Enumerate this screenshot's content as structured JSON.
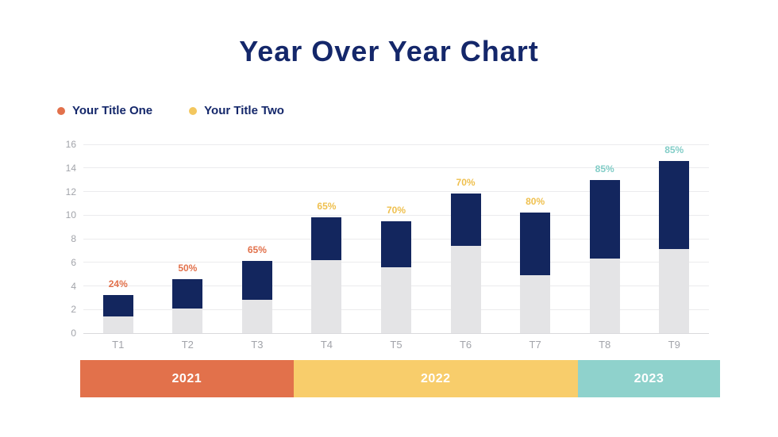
{
  "title": "Year Over Year Chart",
  "legend": {
    "items": [
      {
        "label": "Your Title One",
        "color": "#E2714B"
      },
      {
        "label": "Your Title Two",
        "color": "#F3C75F"
      }
    ]
  },
  "chart_data": {
    "type": "bar",
    "stacked": true,
    "title": "Year Over Year Chart",
    "categories": [
      "T1",
      "T2",
      "T3",
      "T4",
      "T5",
      "T6",
      "T7",
      "T8",
      "T9"
    ],
    "series": [
      {
        "name": "bottom-segment",
        "color": "#E4E4E6",
        "values": [
          1.4,
          2.1,
          2.8,
          6.2,
          5.6,
          7.4,
          4.9,
          6.3,
          7.1
        ]
      },
      {
        "name": "top-segment",
        "color": "#13265E",
        "values": [
          1.8,
          2.5,
          3.3,
          3.6,
          3.9,
          4.4,
          5.3,
          6.7,
          7.5
        ]
      }
    ],
    "stack_totals": [
      3.2,
      4.6,
      6.1,
      9.8,
      9.5,
      11.8,
      10.2,
      13.0,
      14.6
    ],
    "bar_labels": [
      {
        "text": "24%",
        "color": "#E2714B"
      },
      {
        "text": "50%",
        "color": "#E2714B"
      },
      {
        "text": "65%",
        "color": "#E2714B"
      },
      {
        "text": "65%",
        "color": "#EFC04F"
      },
      {
        "text": "70%",
        "color": "#EFC04F"
      },
      {
        "text": "70%",
        "color": "#EFC04F"
      },
      {
        "text": "80%",
        "color": "#EFC04F"
      },
      {
        "text": "85%",
        "color": "#82CDC7"
      },
      {
        "text": "85%",
        "color": "#82CDC7"
      }
    ],
    "ylim": [
      0,
      16
    ],
    "yticks": [
      0,
      2,
      4,
      6,
      8,
      10,
      12,
      14,
      16
    ],
    "grid": true,
    "legend_position": "top-left"
  },
  "year_bands": [
    {
      "label": "2021",
      "color": "#E2714B",
      "span": 3
    },
    {
      "label": "2022",
      "color": "#F8CD6B",
      "span": 4
    },
    {
      "label": "2023",
      "color": "#8FD2CC",
      "span": 2
    }
  ],
  "colors": {
    "title_text": "#14276A",
    "legend_text": "#14276A",
    "axis_text": "#A2A4AA",
    "gridline": "#EBEBED",
    "axis_line": "#D9D9DC",
    "background": "#FFFFFF"
  }
}
